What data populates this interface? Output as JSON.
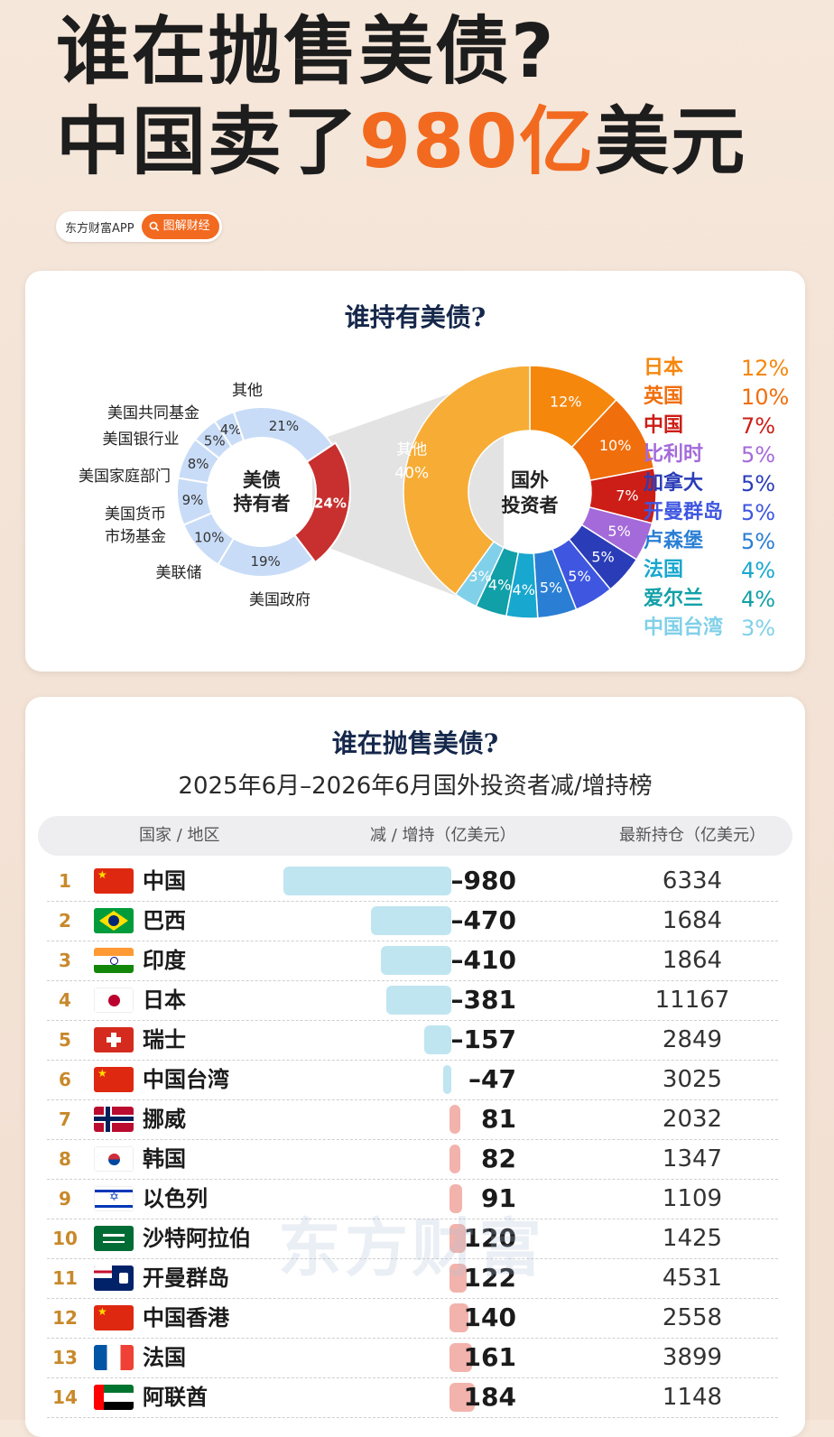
{
  "header": {
    "line1": "谁在抛售美债?",
    "line2_pre": "中国卖了",
    "line2_highlight": "980亿",
    "line2_post": "美元",
    "brand_app": "东方财富APP",
    "brand_tag": "图解财经"
  },
  "holders": {
    "title": "谁持有美债?",
    "center_left": [
      "美债",
      "持有者"
    ],
    "center_right": [
      "国外",
      "投资者"
    ],
    "left_labels": [
      "其他",
      "美国共同基金",
      "美国银行业",
      "美国家庭部门",
      "美国货币",
      "市场基金",
      "美联储",
      "美国政府"
    ],
    "watermark": "东方财富"
  },
  "chart_data": [
    {
      "type": "pie",
      "title": "谁持有美债?",
      "slices": [
        {
          "label": "国外投资者",
          "value": 24,
          "text": "24%",
          "color": "#c7302f"
        },
        {
          "label": "美国政府",
          "value": 19,
          "text": "19%",
          "color": "#c9dcf7"
        },
        {
          "label": "美联储",
          "value": 10,
          "text": "10%",
          "color": "#c9dcf7"
        },
        {
          "label": "美国货币市场基金",
          "value": 9,
          "text": "9%",
          "color": "#c9dcf7"
        },
        {
          "label": "美国家庭部门",
          "value": 8,
          "text": "8%",
          "color": "#c9dcf7"
        },
        {
          "label": "美国银行业",
          "value": 5,
          "text": "5%",
          "color": "#c9dcf7"
        },
        {
          "label": "美国共同基金",
          "value": 4,
          "text": "4%",
          "color": "#c9dcf7"
        },
        {
          "label": "其他",
          "value": 21,
          "text": "21%",
          "color": "#c9dcf7"
        }
      ]
    },
    {
      "type": "pie",
      "title": "国外投资者",
      "slices": [
        {
          "label": "日本",
          "value": 12,
          "text": "12%",
          "color": "#f5870d"
        },
        {
          "label": "英国",
          "value": 10,
          "text": "10%",
          "color": "#f06f0c"
        },
        {
          "label": "中国",
          "value": 7,
          "text": "7%",
          "color": "#cc1d16"
        },
        {
          "label": "比利时",
          "value": 5,
          "text": "5%",
          "color": "#a56ad9"
        },
        {
          "label": "加拿大",
          "value": 5,
          "text": "5%",
          "color": "#2a3cb8"
        },
        {
          "label": "开曼群岛",
          "value": 5,
          "text": "5%",
          "color": "#3f57e0"
        },
        {
          "label": "卢森堡",
          "value": 5,
          "text": "5%",
          "color": "#2a7fd4"
        },
        {
          "label": "法国",
          "value": 4,
          "text": "4%",
          "color": "#17a7cf"
        },
        {
          "label": "爱尔兰",
          "value": 4,
          "text": "4%",
          "color": "#12a0a8"
        },
        {
          "label": "中国台湾",
          "value": 3,
          "text": "3%",
          "color": "#7fd0e8"
        },
        {
          "label": "其他",
          "value": 40,
          "text": "40%",
          "color": "#f7ac35"
        }
      ]
    },
    {
      "type": "table",
      "title": "谁在抛售美债?",
      "subtitle": "2025年6月–2026年6月国外投资者减/增持榜",
      "columns": [
        "国家 / 地区",
        "减 / 增持（亿美元）",
        "最新持仓（亿美元）"
      ],
      "rows": [
        {
          "rank": "1",
          "name": "中国",
          "change": -980,
          "change_text": "–980",
          "holding": "6334",
          "flag": "cn"
        },
        {
          "rank": "2",
          "name": "巴西",
          "change": -470,
          "change_text": "–470",
          "holding": "1684",
          "flag": "br"
        },
        {
          "rank": "3",
          "name": "印度",
          "change": -410,
          "change_text": "–410",
          "holding": "1864",
          "flag": "in"
        },
        {
          "rank": "4",
          "name": "日本",
          "change": -381,
          "change_text": "–381",
          "holding": "11167",
          "flag": "jp"
        },
        {
          "rank": "5",
          "name": "瑞士",
          "change": -157,
          "change_text": "–157",
          "holding": "2849",
          "flag": "ch"
        },
        {
          "rank": "6",
          "name": "中国台湾",
          "change": -47,
          "change_text": "–47",
          "holding": "3025",
          "flag": "cn"
        },
        {
          "rank": "7",
          "name": "挪威",
          "change": 81,
          "change_text": "81",
          "holding": "2032",
          "flag": "no"
        },
        {
          "rank": "8",
          "name": "韩国",
          "change": 82,
          "change_text": "82",
          "holding": "1347",
          "flag": "kr"
        },
        {
          "rank": "9",
          "name": "以色列",
          "change": 91,
          "change_text": "91",
          "holding": "1109",
          "flag": "il"
        },
        {
          "rank": "10",
          "name": "沙特阿拉伯",
          "change": 120,
          "change_text": "120",
          "holding": "1425",
          "flag": "sa"
        },
        {
          "rank": "11",
          "name": "开曼群岛",
          "change": 122,
          "change_text": "122",
          "holding": "4531",
          "flag": "ky"
        },
        {
          "rank": "12",
          "name": "中国香港",
          "change": 140,
          "change_text": "140",
          "holding": "2558",
          "flag": "cn"
        },
        {
          "rank": "13",
          "name": "法国",
          "change": 161,
          "change_text": "161",
          "holding": "3899",
          "flag": "fr"
        },
        {
          "rank": "14",
          "name": "阿联酋",
          "change": 184,
          "change_text": "184",
          "holding": "1148",
          "flag": "ae"
        }
      ]
    }
  ],
  "colors": {
    "accent": "#f26a1f",
    "navy": "#15284b",
    "neg_bar": "#bfe6f0",
    "pos_bar": "#f3b3ad"
  }
}
